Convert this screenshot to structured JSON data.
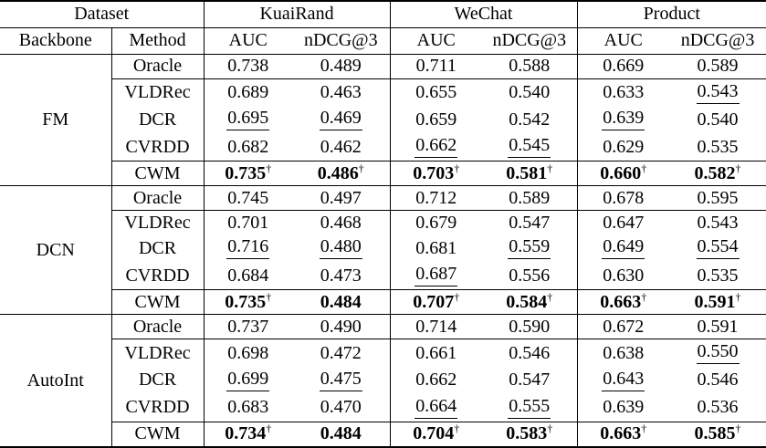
{
  "table": {
    "dagger_symbol": "†",
    "header": {
      "dataset": "Dataset",
      "backbone": "Backbone",
      "method": "Method",
      "groups": [
        {
          "name": "KuaiRand",
          "metric1": "AUC",
          "metric2": "nDCG@3"
        },
        {
          "name": "WeChat",
          "metric1": "AUC",
          "metric2": "nDCG@3"
        },
        {
          "name": "Product",
          "metric1": "AUC",
          "metric2": "nDCG@3"
        }
      ]
    },
    "blocks": [
      {
        "backbone": "FM",
        "rows": [
          {
            "method": "Oracle",
            "cells": [
              {
                "text": "0.738"
              },
              {
                "text": "0.489"
              },
              {
                "text": "0.711"
              },
              {
                "text": "0.588"
              },
              {
                "text": "0.669"
              },
              {
                "text": "0.589"
              }
            ]
          },
          {
            "method": "VLDRec",
            "cells": [
              {
                "text": "0.689"
              },
              {
                "text": "0.463"
              },
              {
                "text": "0.655"
              },
              {
                "text": "0.540"
              },
              {
                "text": "0.633"
              },
              {
                "text": "0.543",
                "underline": true
              }
            ]
          },
          {
            "method": "DCR",
            "cells": [
              {
                "text": "0.695",
                "underline": true
              },
              {
                "text": "0.469",
                "underline": true
              },
              {
                "text": "0.659"
              },
              {
                "text": "0.542"
              },
              {
                "text": "0.639",
                "underline": true
              },
              {
                "text": "0.540"
              }
            ]
          },
          {
            "method": "CVRDD",
            "cells": [
              {
                "text": "0.682"
              },
              {
                "text": "0.462"
              },
              {
                "text": "0.662",
                "underline": true
              },
              {
                "text": "0.545",
                "underline": true
              },
              {
                "text": "0.629"
              },
              {
                "text": "0.535"
              }
            ]
          },
          {
            "method": "CWM",
            "cells": [
              {
                "text": "0.735",
                "bold": true,
                "dagger": true
              },
              {
                "text": "0.486",
                "bold": true,
                "dagger": true
              },
              {
                "text": "0.703",
                "bold": true,
                "dagger": true
              },
              {
                "text": "0.581",
                "bold": true,
                "dagger": true
              },
              {
                "text": "0.660",
                "bold": true,
                "dagger": true
              },
              {
                "text": "0.582",
                "bold": true,
                "dagger": true
              }
            ]
          }
        ]
      },
      {
        "backbone": "DCN",
        "rows": [
          {
            "method": "Oracle",
            "cells": [
              {
                "text": "0.745"
              },
              {
                "text": "0.497"
              },
              {
                "text": "0.712"
              },
              {
                "text": "0.589"
              },
              {
                "text": "0.678"
              },
              {
                "text": "0.595"
              }
            ]
          },
          {
            "method": "VLDRec",
            "cells": [
              {
                "text": "0.701"
              },
              {
                "text": "0.468"
              },
              {
                "text": "0.679"
              },
              {
                "text": "0.547"
              },
              {
                "text": "0.647"
              },
              {
                "text": "0.543"
              }
            ]
          },
          {
            "method": "DCR",
            "cells": [
              {
                "text": "0.716",
                "underline": true
              },
              {
                "text": "0.480",
                "underline": true
              },
              {
                "text": "0.681"
              },
              {
                "text": "0.559",
                "underline": true
              },
              {
                "text": "0.649",
                "underline": true
              },
              {
                "text": "0.554",
                "underline": true
              }
            ]
          },
          {
            "method": "CVRDD",
            "cells": [
              {
                "text": "0.684"
              },
              {
                "text": "0.473"
              },
              {
                "text": "0.687",
                "underline": true
              },
              {
                "text": "0.556"
              },
              {
                "text": "0.630"
              },
              {
                "text": "0.535"
              }
            ]
          },
          {
            "method": "CWM",
            "cells": [
              {
                "text": "0.735",
                "bold": true,
                "dagger": true
              },
              {
                "text": "0.484",
                "bold": true
              },
              {
                "text": "0.707",
                "bold": true,
                "dagger": true
              },
              {
                "text": "0.584",
                "bold": true,
                "dagger": true
              },
              {
                "text": "0.663",
                "bold": true,
                "dagger": true
              },
              {
                "text": "0.591",
                "bold": true,
                "dagger": true
              }
            ]
          }
        ]
      },
      {
        "backbone": "AutoInt",
        "rows": [
          {
            "method": "Oracle",
            "cells": [
              {
                "text": "0.737"
              },
              {
                "text": "0.490"
              },
              {
                "text": "0.714"
              },
              {
                "text": "0.590"
              },
              {
                "text": "0.672"
              },
              {
                "text": "0.591"
              }
            ]
          },
          {
            "method": "VLDRec",
            "cells": [
              {
                "text": "0.698"
              },
              {
                "text": "0.472"
              },
              {
                "text": "0.661"
              },
              {
                "text": "0.546"
              },
              {
                "text": "0.638"
              },
              {
                "text": "0.550",
                "underline": true
              }
            ]
          },
          {
            "method": "DCR",
            "cells": [
              {
                "text": "0.699",
                "underline": true
              },
              {
                "text": "0.475",
                "underline": true
              },
              {
                "text": "0.662"
              },
              {
                "text": "0.547"
              },
              {
                "text": "0.643",
                "underline": true
              },
              {
                "text": "0.546"
              }
            ]
          },
          {
            "method": "CVRDD",
            "cells": [
              {
                "text": "0.683"
              },
              {
                "text": "0.470"
              },
              {
                "text": "0.664",
                "underline": true
              },
              {
                "text": "0.555",
                "underline": true
              },
              {
                "text": "0.639"
              },
              {
                "text": "0.536"
              }
            ]
          },
          {
            "method": "CWM",
            "cells": [
              {
                "text": "0.734",
                "bold": true,
                "dagger": true
              },
              {
                "text": "0.484",
                "bold": true
              },
              {
                "text": "0.704",
                "bold": true,
                "dagger": true
              },
              {
                "text": "0.583",
                "bold": true,
                "dagger": true
              },
              {
                "text": "0.663",
                "bold": true,
                "dagger": true
              },
              {
                "text": "0.585",
                "bold": true,
                "dagger": true
              }
            ]
          }
        ]
      }
    ]
  }
}
